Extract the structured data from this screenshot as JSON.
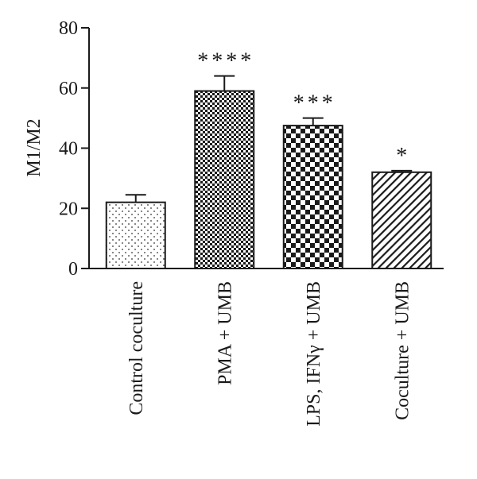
{
  "chart_data": {
    "type": "bar",
    "ylabel": "M1/M2",
    "ylim": [
      0,
      80
    ],
    "yticks": [
      0,
      20,
      40,
      60,
      80
    ],
    "categories": [
      "Control coculture",
      "PMA + UMB",
      "LPS, IFNγ + UMB",
      "Coculture + UMB"
    ],
    "values": [
      22,
      59,
      47.5,
      32
    ],
    "errors": [
      2.5,
      5,
      2.5,
      0.5
    ],
    "significance": [
      "",
      "****",
      "***",
      "*"
    ],
    "patterns": [
      "dots",
      "fine-checker",
      "coarse-checker",
      "diagonal-stripes"
    ]
  }
}
